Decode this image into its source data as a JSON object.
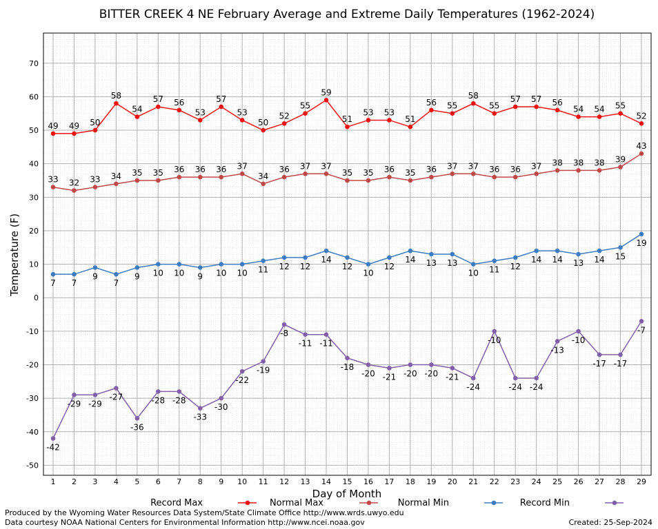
{
  "chart_data": {
    "type": "line",
    "title": "BITTER CREEK 4 NE February Average and Extreme Daily Temperatures (1962-2024)",
    "xlabel": "Day of Month",
    "ylabel": "Temperature (F)",
    "xlim": [
      1,
      29
    ],
    "ylim": [
      -53,
      79
    ],
    "y_ticks": [
      -50,
      -40,
      -30,
      -20,
      -10,
      0,
      10,
      20,
      30,
      40,
      50,
      60,
      70
    ],
    "x": [
      1,
      2,
      3,
      4,
      5,
      6,
      7,
      8,
      9,
      10,
      11,
      12,
      13,
      14,
      15,
      16,
      17,
      18,
      19,
      20,
      21,
      22,
      23,
      24,
      25,
      26,
      27,
      28,
      29
    ],
    "grid": true,
    "legend_position": "bottom",
    "series": [
      {
        "name": "Record Max",
        "color": "#ee1111",
        "label_position": "above",
        "values": [
          49,
          49,
          50,
          58,
          54,
          57,
          56,
          53,
          57,
          53,
          50,
          52,
          55,
          59,
          51,
          53,
          53,
          51,
          56,
          55,
          58,
          55,
          57,
          57,
          56,
          54,
          54,
          55,
          52
        ]
      },
      {
        "name": "Normal Max",
        "color": "#c04848",
        "label_position": "above",
        "values": [
          33,
          32,
          33,
          34,
          35,
          35,
          36,
          36,
          36,
          37,
          34,
          36,
          37,
          37,
          35,
          35,
          36,
          35,
          36,
          37,
          37,
          36,
          36,
          37,
          38,
          38,
          38,
          39,
          43
        ]
      },
      {
        "name": "Normal Min",
        "color": "#3d7cc2",
        "label_position": "below",
        "values": [
          7,
          7,
          9,
          7,
          9,
          10,
          10,
          9,
          10,
          10,
          11,
          12,
          12,
          14,
          12,
          10,
          12,
          14,
          13,
          13,
          10,
          11,
          12,
          14,
          14,
          13,
          14,
          15,
          19
        ]
      },
      {
        "name": "Record Min",
        "color": "#8060a8",
        "label_position": "below",
        "values": [
          -42,
          -29,
          -29,
          -27,
          -36,
          -28,
          -28,
          -33,
          -30,
          -22,
          -19,
          -8,
          -11,
          -11,
          -18,
          -20,
          -21,
          -20,
          -20,
          -21,
          -24,
          -10,
          -24,
          -24,
          -13,
          -10,
          -17,
          -17,
          -7
        ]
      }
    ]
  },
  "footer": {
    "credit_line1": "Produced by the Wyoming Water Resources Data System/State Climate Office http://www.wrds.uwyo.edu",
    "credit_line2": "Data courtesy NOAA National Centers for Environmental Information http://www.ncei.noaa.gov",
    "created": "Created:  25-Sep-2024"
  }
}
